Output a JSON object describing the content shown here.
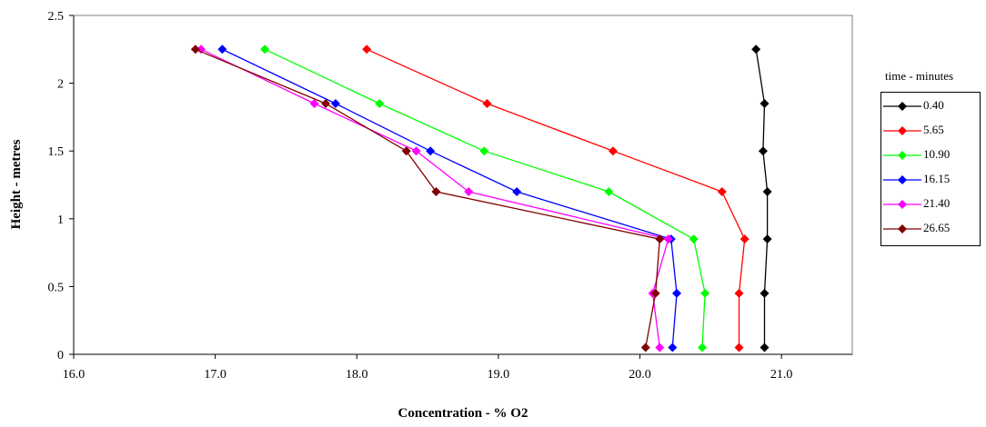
{
  "chart_data": {
    "type": "line",
    "xlabel": "Concentration - % O2",
    "ylabel": "Height - metres",
    "xlim": [
      16.0,
      21.5
    ],
    "ylim": [
      0,
      2.5
    ],
    "x_ticks": [
      "16.0",
      "17.0",
      "18.0",
      "19.0",
      "20.0",
      "21.0"
    ],
    "y_ticks": [
      "0",
      "0.5",
      "1",
      "1.5",
      "2",
      "2.5"
    ],
    "grid": false,
    "legend_title": "time - minutes",
    "legend_position": "right",
    "marker": "diamond",
    "series": [
      {
        "name": "0.40",
        "color": "#000000",
        "points": [
          [
            20.82,
            2.25
          ],
          [
            20.88,
            1.85
          ],
          [
            20.87,
            1.5
          ],
          [
            20.9,
            1.2
          ],
          [
            20.9,
            0.85
          ],
          [
            20.88,
            0.45
          ],
          [
            20.88,
            0.05
          ]
        ]
      },
      {
        "name": "5.65",
        "color": "#ff0000",
        "points": [
          [
            18.07,
            2.25
          ],
          [
            18.92,
            1.85
          ],
          [
            19.81,
            1.5
          ],
          [
            20.58,
            1.2
          ],
          [
            20.74,
            0.85
          ],
          [
            20.7,
            0.45
          ],
          [
            20.7,
            0.05
          ]
        ]
      },
      {
        "name": "10.90",
        "color": "#00ff00",
        "points": [
          [
            17.35,
            2.25
          ],
          [
            18.16,
            1.85
          ],
          [
            18.9,
            1.5
          ],
          [
            19.78,
            1.2
          ],
          [
            20.38,
            0.85
          ],
          [
            20.46,
            0.45
          ],
          [
            20.44,
            0.05
          ]
        ]
      },
      {
        "name": "16.15",
        "color": "#0000ff",
        "points": [
          [
            17.05,
            2.25
          ],
          [
            17.85,
            1.85
          ],
          [
            18.52,
            1.5
          ],
          [
            19.13,
            1.2
          ],
          [
            20.22,
            0.85
          ],
          [
            20.26,
            0.45
          ],
          [
            20.23,
            0.05
          ]
        ]
      },
      {
        "name": "21.40",
        "color": "#ff00ff",
        "points": [
          [
            16.9,
            2.25
          ],
          [
            17.7,
            1.85
          ],
          [
            18.42,
            1.5
          ],
          [
            18.79,
            1.2
          ],
          [
            20.2,
            0.85
          ],
          [
            20.09,
            0.45
          ],
          [
            20.14,
            0.05
          ]
        ]
      },
      {
        "name": "26.65",
        "color": "#800000",
        "points": [
          [
            16.86,
            2.25
          ],
          [
            17.78,
            1.85
          ],
          [
            18.35,
            1.5
          ],
          [
            18.56,
            1.2
          ],
          [
            20.14,
            0.85
          ],
          [
            20.11,
            0.45
          ],
          [
            20.04,
            0.05
          ]
        ]
      }
    ]
  }
}
